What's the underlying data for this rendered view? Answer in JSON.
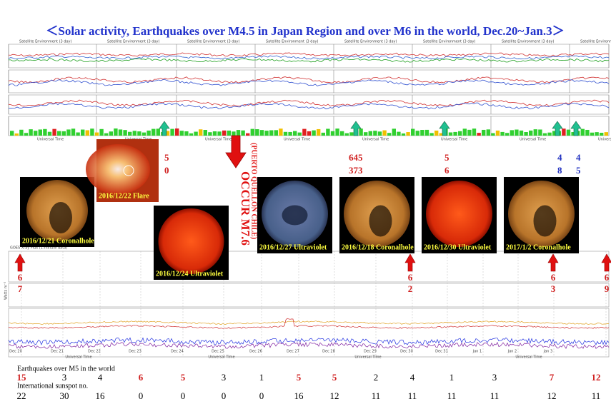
{
  "title": "＜Solar activity, Earthquakes over M4.5 in Japan Region and over M6 in the world, Dec.20~Jan.3＞",
  "top_panel": {
    "header": "Satellite Environment (3 day)",
    "footer": "Universal Time"
  },
  "images": [
    {
      "caption": "2016/12/21 Coronalhole"
    },
    {
      "caption": "2016/12/22 Flare"
    },
    {
      "caption": "2016/12/24 Ultraviolet"
    },
    {
      "caption": "2016/12/27 Ultraviolet"
    },
    {
      "caption": "2016/12/18 Coronalhole"
    },
    {
      "caption": "2016/12/30 Ultraviolet"
    },
    {
      "caption": "2017/1/2 Coronalhole"
    }
  ],
  "occur": {
    "text": "OCCUR M7.6",
    "place": "(PUERTO QUELLON CHILE)"
  },
  "green_arrows": [
    {
      "lines": [
        "5",
        "0"
      ]
    },
    {
      "lines": [
        "645",
        "373"
      ]
    },
    {
      "lines": [
        "5",
        "6"
      ]
    },
    {
      "lines": [
        "4",
        "8"
      ]
    },
    {
      "lines": [
        "4",
        "5"
      ]
    }
  ],
  "red_arrows": [
    {
      "lines": [
        "6",
        "7"
      ]
    },
    {
      "lines": [
        "6",
        "2"
      ]
    },
    {
      "lines": [
        "6",
        "3"
      ]
    },
    {
      "lines": [
        "6",
        "9"
      ]
    }
  ],
  "lower_panel": {
    "header": "GOES Xray Flux (1-minute data)",
    "y_label": "Watts m⁻²",
    "time_label": "Universal Time",
    "x_labels": [
      "Dec 20",
      "Dec 21",
      "Dec 22",
      "Dec 23",
      "Dec 24",
      "Dec 25",
      "Dec 26",
      "Dec 27",
      "Dec 28",
      "Dec 29",
      "Dec 30",
      "Dec 31",
      "Jan 1",
      "Jan 2",
      "Jan 3"
    ]
  },
  "table": {
    "earthquakes_label": "Earthquakes over M5 in the world",
    "earthquakes": [
      15,
      3,
      4,
      6,
      5,
      3,
      1,
      5,
      5,
      2,
      4,
      1,
      3,
      7,
      12
    ],
    "earthquake_colors": [
      "#d02020",
      "#000",
      "#000",
      "#d02020",
      "#d02020",
      "#000",
      "#000",
      "#d02020",
      "#d02020",
      "#000",
      "#000",
      "#000",
      "#000",
      "#d02020",
      "#d02020"
    ],
    "sunspot_label": "International sunspot no.",
    "sunspot": [
      22,
      30,
      16,
      0,
      0,
      0,
      0,
      16,
      12,
      11,
      11,
      11,
      11,
      12,
      11
    ]
  }
}
